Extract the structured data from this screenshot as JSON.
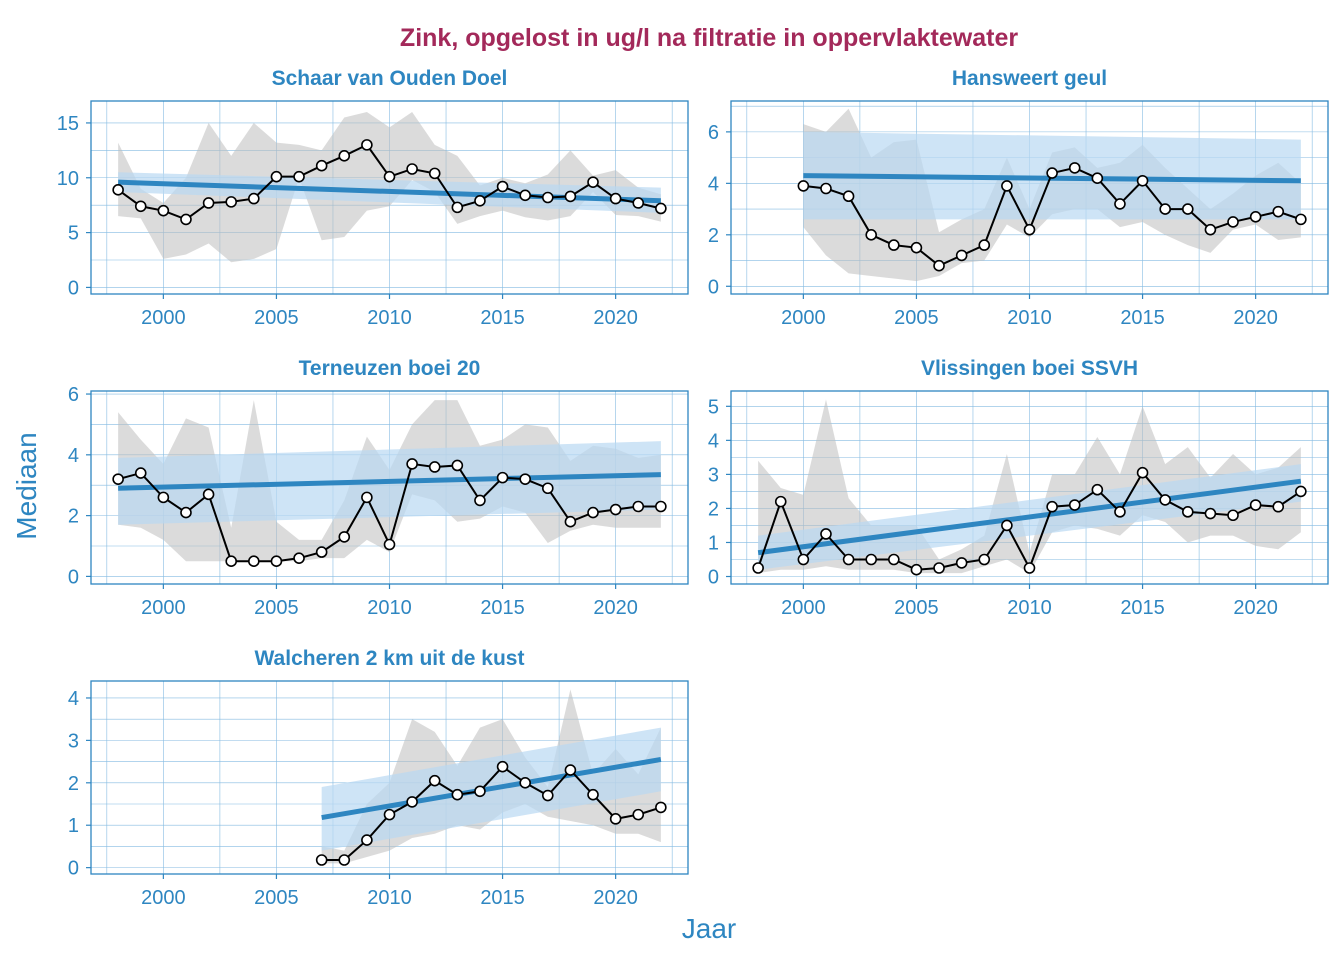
{
  "title": "Zink, opgelost in ug/l na filtratie in oppervlaktewater",
  "xlabel": "Jaar",
  "ylabel": "Mediaan",
  "colors": {
    "title": "#a3295a",
    "axis": "#2e86c1",
    "grid": "#5da5d8",
    "median_line": "#000000",
    "trend": "#2e86c1",
    "trend_band": "#b9d8f2",
    "range_band": "#bdbdbd"
  },
  "chart_data": [
    {
      "type": "line",
      "title": "Schaar van Ouden Doel",
      "xlim": [
        1996.8,
        2023.2
      ],
      "ylim": [
        -0.6,
        17.0
      ],
      "xticks": [
        2000,
        2005,
        2010,
        2015,
        2020
      ],
      "yticks": [
        0,
        5,
        10,
        15
      ],
      "x": [
        1998,
        1999,
        2000,
        2001,
        2002,
        2003,
        2004,
        2005,
        2006,
        2007,
        2008,
        2009,
        2010,
        2011,
        2012,
        2013,
        2014,
        2015,
        2016,
        2017,
        2018,
        2019,
        2020,
        2021,
        2022
      ],
      "median": [
        8.9,
        7.4,
        7.0,
        6.2,
        7.7,
        7.8,
        8.1,
        10.1,
        10.1,
        11.1,
        12.0,
        13.0,
        10.1,
        10.8,
        10.4,
        7.3,
        7.9,
        9.2,
        8.4,
        8.2,
        8.3,
        9.6,
        8.1,
        7.7,
        7.2
      ],
      "band_low": [
        6.5,
        6.3,
        2.6,
        3.0,
        4.0,
        2.3,
        2.6,
        3.5,
        10.0,
        4.3,
        4.6,
        7.0,
        7.4,
        9.8,
        8.7,
        5.8,
        6.5,
        7.0,
        6.4,
        6.1,
        6.5,
        8.7,
        6.6,
        6.5,
        6.0
      ],
      "band_high": [
        13.2,
        9.0,
        7.7,
        10.0,
        15.0,
        12.0,
        15.0,
        13.2,
        13.0,
        12.5,
        15.5,
        16.0,
        14.6,
        16.0,
        13.0,
        12.0,
        9.3,
        10.0,
        9.5,
        10.3,
        12.5,
        10.2,
        10.7,
        9.1,
        8.5
      ],
      "trend": [
        9.6,
        7.9
      ],
      "trend_ci_start": [
        8.7,
        10.5
      ],
      "trend_ci_end": [
        6.8,
        9.1
      ]
    },
    {
      "type": "line",
      "title": "Hansweert geul",
      "xlim": [
        1996.8,
        2023.2
      ],
      "ylim": [
        -0.3,
        7.2
      ],
      "xticks": [
        2000,
        2005,
        2010,
        2015,
        2020
      ],
      "yticks": [
        0,
        2,
        4,
        6
      ],
      "x": [
        2000,
        2001,
        2002,
        2003,
        2004,
        2005,
        2006,
        2007,
        2008,
        2009,
        2010,
        2011,
        2012,
        2013,
        2014,
        2015,
        2016,
        2017,
        2018,
        2019,
        2020,
        2021,
        2022
      ],
      "median": [
        3.9,
        3.8,
        3.5,
        2.0,
        1.6,
        1.5,
        0.8,
        1.2,
        1.6,
        3.9,
        2.2,
        4.4,
        4.6,
        4.2,
        3.2,
        4.1,
        3.0,
        3.0,
        2.2,
        2.5,
        2.7,
        2.9,
        2.6
      ],
      "band_low": [
        2.3,
        1.2,
        0.5,
        0.4,
        0.3,
        0.2,
        0.4,
        0.9,
        1.0,
        2.4,
        1.9,
        2.8,
        3.0,
        3.0,
        2.3,
        2.5,
        2.0,
        1.6,
        1.3,
        2.2,
        2.4,
        1.8,
        1.9
      ],
      "band_high": [
        6.3,
        6.0,
        6.9,
        5.0,
        5.6,
        5.7,
        2.1,
        2.6,
        3.0,
        5.0,
        3.0,
        5.2,
        5.4,
        4.6,
        4.8,
        5.5,
        4.6,
        3.8,
        3.0,
        3.6,
        4.3,
        4.8,
        4.0
      ],
      "trend": [
        4.3,
        4.1
      ],
      "trend_ci_start": [
        2.6,
        6.0
      ],
      "trend_ci_end": [
        2.6,
        5.7
      ]
    },
    {
      "type": "line",
      "title": "Terneuzen boei 20",
      "xlim": [
        1996.8,
        2023.2
      ],
      "ylim": [
        -0.25,
        6.1
      ],
      "xticks": [
        2000,
        2005,
        2010,
        2015,
        2020
      ],
      "yticks": [
        0,
        2,
        4,
        6
      ],
      "x": [
        1998,
        1999,
        2000,
        2001,
        2002,
        2003,
        2004,
        2005,
        2006,
        2007,
        2008,
        2009,
        2010,
        2011,
        2012,
        2013,
        2014,
        2015,
        2016,
        2017,
        2018,
        2019,
        2020,
        2021,
        2022
      ],
      "median": [
        3.2,
        3.4,
        2.6,
        2.1,
        2.7,
        0.5,
        0.5,
        0.5,
        0.6,
        0.8,
        1.3,
        2.6,
        1.05,
        3.7,
        3.6,
        3.65,
        2.5,
        3.25,
        3.2,
        2.9,
        1.8,
        2.1,
        2.2,
        2.3,
        2.3
      ],
      "band_low": [
        1.7,
        1.6,
        1.2,
        0.5,
        0.5,
        0.5,
        0.5,
        0.5,
        0.5,
        0.6,
        0.6,
        1.2,
        0.8,
        2.7,
        2.5,
        1.8,
        1.9,
        2.3,
        2.1,
        1.1,
        1.5,
        1.7,
        1.6,
        1.6,
        1.6
      ],
      "band_high": [
        5.4,
        4.5,
        3.7,
        5.2,
        4.9,
        1.6,
        5.8,
        1.8,
        1.2,
        1.2,
        2.5,
        4.6,
        3.5,
        5.0,
        5.8,
        5.8,
        4.3,
        4.5,
        5.0,
        4.9,
        3.8,
        4.3,
        4.2,
        3.9,
        4.0
      ],
      "trend": [
        2.9,
        3.35
      ],
      "trend_ci_start": [
        1.7,
        3.9
      ],
      "trend_ci_end": [
        2.2,
        4.45
      ]
    },
    {
      "type": "line",
      "title": "Vlissingen boei SSVH",
      "xlim": [
        1996.8,
        2023.2
      ],
      "ylim": [
        -0.22,
        5.45
      ],
      "xticks": [
        2000,
        2005,
        2010,
        2015,
        2020
      ],
      "yticks": [
        0,
        1,
        2,
        3,
        4,
        5
      ],
      "x": [
        1998,
        1999,
        2000,
        2001,
        2002,
        2003,
        2004,
        2005,
        2006,
        2007,
        2008,
        2009,
        2010,
        2011,
        2012,
        2013,
        2014,
        2015,
        2016,
        2017,
        2018,
        2019,
        2020,
        2021,
        2022
      ],
      "median": [
        0.25,
        2.2,
        0.5,
        1.25,
        0.5,
        0.5,
        0.5,
        0.2,
        0.25,
        0.4,
        0.5,
        1.5,
        0.25,
        2.05,
        2.1,
        2.55,
        1.9,
        3.05,
        2.25,
        1.9,
        1.85,
        1.8,
        2.1,
        2.05,
        2.5
      ],
      "band_low": [
        0.1,
        0.2,
        0.2,
        0.3,
        0.2,
        0.2,
        0.2,
        0.1,
        0.1,
        0.1,
        0.3,
        0.5,
        0.1,
        1.3,
        1.5,
        1.4,
        1.2,
        1.8,
        1.6,
        1.0,
        1.2,
        1.2,
        0.9,
        0.8,
        1.3
      ],
      "band_high": [
        3.4,
        2.6,
        2.4,
        5.2,
        2.3,
        1.5,
        1.5,
        1.5,
        0.5,
        0.8,
        1.2,
        3.6,
        0.7,
        3.0,
        3.0,
        4.1,
        3.0,
        5.0,
        3.3,
        3.8,
        2.9,
        3.6,
        3.0,
        3.2,
        3.8
      ],
      "trend": [
        0.7,
        2.8
      ],
      "trend_ci_start": [
        0.2,
        1.2
      ],
      "trend_ci_end": [
        2.2,
        3.3
      ]
    },
    {
      "type": "line",
      "title": "Walcheren 2 km uit de kust",
      "xlim": [
        1996.8,
        2023.2
      ],
      "ylim": [
        -0.15,
        4.4
      ],
      "xticks": [
        2000,
        2005,
        2010,
        2015,
        2020
      ],
      "yticks": [
        0,
        1,
        2,
        3,
        4
      ],
      "x": [
        2007,
        2008,
        2009,
        2010,
        2011,
        2012,
        2013,
        2014,
        2015,
        2016,
        2017,
        2018,
        2019,
        2020,
        2021,
        2022
      ],
      "median": [
        0.18,
        0.18,
        0.65,
        1.25,
        1.55,
        2.05,
        1.72,
        1.8,
        2.38,
        2.0,
        1.7,
        2.3,
        1.72,
        1.15,
        1.25,
        1.42
      ],
      "band_low": [
        0.1,
        0.1,
        0.25,
        0.4,
        0.7,
        0.8,
        1.0,
        0.9,
        1.3,
        1.5,
        1.2,
        1.1,
        1.0,
        0.8,
        0.8,
        0.6
      ],
      "band_high": [
        0.5,
        0.4,
        1.5,
        2.0,
        3.5,
        3.2,
        2.4,
        3.3,
        3.5,
        2.6,
        1.9,
        4.2,
        2.2,
        2.8,
        2.2,
        3.3
      ],
      "trend": [
        1.18,
        2.55
      ],
      "trend_ci_start": [
        0.4,
        1.9
      ],
      "trend_ci_end": [
        1.8,
        3.3
      ]
    }
  ]
}
